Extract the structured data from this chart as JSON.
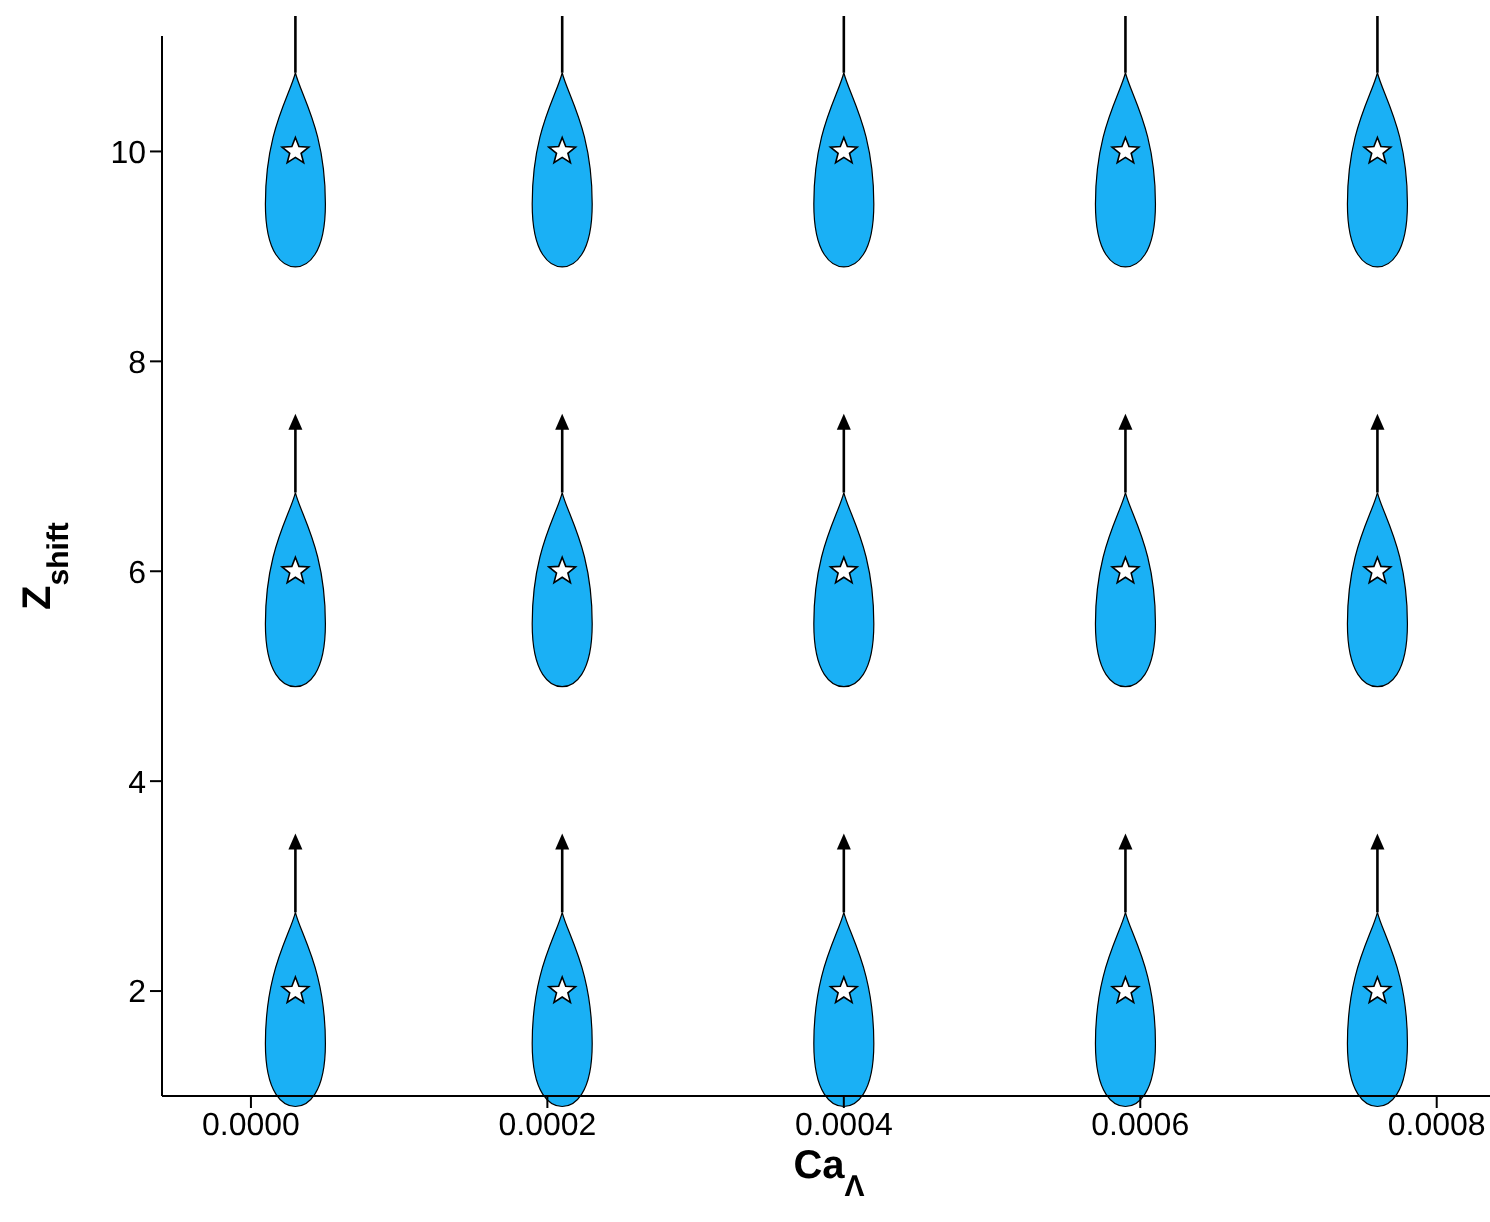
{
  "chart_data": {
    "type": "scatter",
    "xlabel": "Ca$_{Λ}$",
    "ylabel": "Z$_{shift}$",
    "x": [
      3e-05,
      0.00021,
      0.0004,
      0.00059,
      0.00076,
      3e-05,
      0.00021,
      0.0004,
      0.00059,
      0.00076,
      3e-05,
      0.00021,
      0.0004,
      0.00059,
      0.00076
    ],
    "values": [
      2,
      2,
      2,
      2,
      2,
      6,
      6,
      6,
      6,
      6,
      10,
      10,
      10,
      10,
      10
    ],
    "color": "#ffffff",
    "marker": "star",
    "grid": false,
    "legend": false,
    "xlim": [
      -6e-05,
      0.00084
    ],
    "xticks": [
      {
        "value": 0,
        "label": "0.0000"
      },
      {
        "value": 0.0002,
        "label": "0.0002"
      },
      {
        "value": 0.0004,
        "label": "0.0004"
      },
      {
        "value": 0.0006,
        "label": "0.0006"
      },
      {
        "value": 0.0008,
        "label": "0.0008"
      }
    ],
    "ylim": [
      1,
      11.1
    ],
    "yticks": [
      2,
      4,
      6,
      8,
      10
    ]
  }
}
